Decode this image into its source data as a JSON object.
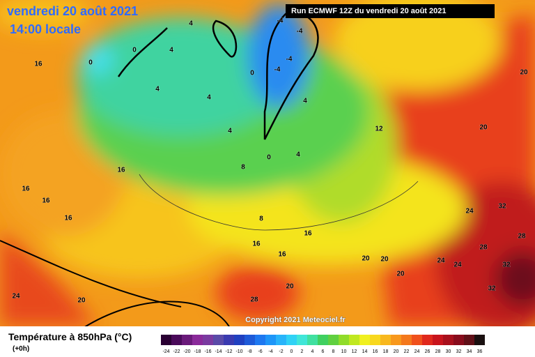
{
  "header": {
    "date": "vendredi 20 août 2021",
    "time": "14:00 locale",
    "run": "Run ECMWF 12Z du vendredi 20 août 2021"
  },
  "copyright": "Copyright 2021 Meteociel.fr",
  "legend": {
    "title": "Température à 850hPa (°C)",
    "lead": "(+0h)",
    "ticks": [
      -24,
      -22,
      -20,
      -18,
      -16,
      -14,
      -12,
      -10,
      -8,
      -6,
      -4,
      -2,
      0,
      2,
      4,
      6,
      8,
      10,
      12,
      14,
      16,
      18,
      20,
      22,
      24,
      26,
      28,
      30,
      32,
      34,
      36
    ],
    "colors": [
      "#2a0033",
      "#4a0a5a",
      "#6a1a7a",
      "#8a2a9a",
      "#7a3aa0",
      "#5a4aa8",
      "#3a3ab0",
      "#2040c0",
      "#1e5ad8",
      "#1e78f0",
      "#1e96f8",
      "#28b4fa",
      "#30d2f5",
      "#40e6d8",
      "#40e0a0",
      "#40d060",
      "#60d040",
      "#90dc2a",
      "#c0e820",
      "#f0f020",
      "#f8d81e",
      "#f8b81e",
      "#f8981c",
      "#f4781c",
      "#f0501c",
      "#e0281c",
      "#c8141c",
      "#a8101c",
      "#880c1c",
      "#601018",
      "#1a1010"
    ]
  },
  "contour_labels": [
    "0",
    "0",
    "4",
    "4",
    "4",
    "4",
    "4",
    "0",
    "-4",
    "-4",
    "-4",
    "-4",
    "4",
    "4",
    "0",
    "8",
    "8",
    "12",
    "16",
    "16",
    "16",
    "16",
    "16",
    "16",
    "16",
    "16",
    "20",
    "20",
    "20",
    "20",
    "20",
    "20",
    "20",
    "24",
    "24",
    "24",
    "24",
    "28",
    "28",
    "32",
    "32",
    "32",
    "28"
  ]
}
